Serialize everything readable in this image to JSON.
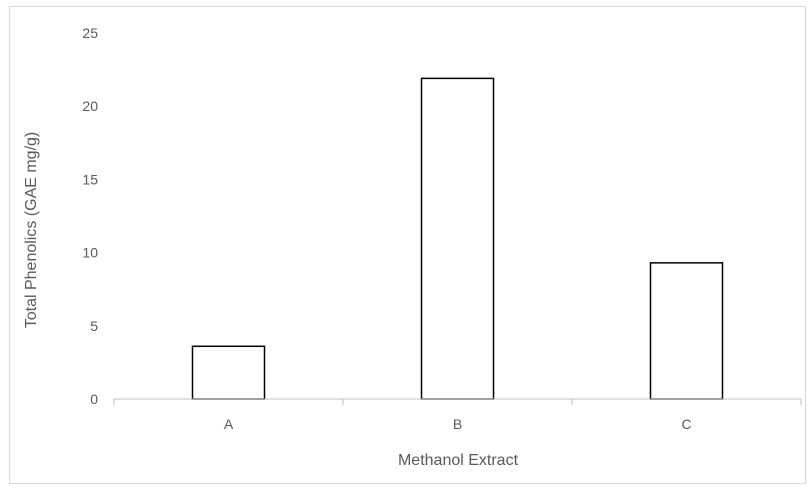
{
  "chart_data": {
    "type": "bar",
    "categories": [
      "A",
      "B",
      "C"
    ],
    "values": [
      3.6,
      21.9,
      9.3
    ],
    "title": "",
    "xlabel": "Methanol Extract",
    "ylabel": "Total Phenolics (GAE mg/g)",
    "ylim": [
      0,
      25
    ],
    "yticks": [
      0,
      5,
      10,
      15,
      20,
      25
    ],
    "grid": false,
    "legend": "none"
  },
  "colors": {
    "bar_fill": "#ffffff",
    "bar_stroke": "#000000",
    "axis": "#bfbfbf",
    "text": "#595959"
  }
}
